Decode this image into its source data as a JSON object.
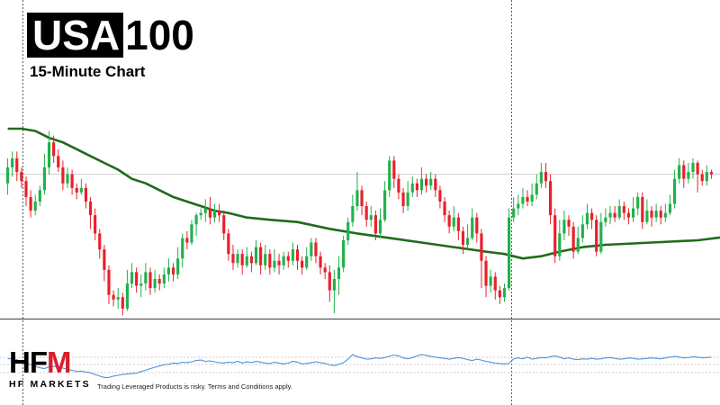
{
  "header": {
    "title_boxed": "USA",
    "title_rest": "100",
    "subtitle": "15-Minute Chart"
  },
  "footer": {
    "logo_text": "HF",
    "logo_accent": "M",
    "logo_sub": "HF MARKETS",
    "disclaimer": "Trading Leveraged Products is risky. Terms and Conditions apply."
  },
  "colors": {
    "up": "#22b14c",
    "down": "#e8202a",
    "ma": "#1f6b1a",
    "oscillator": "#4f93d6",
    "brand_red": "#d81e2a"
  },
  "chart_data": {
    "type": "candlestick",
    "title": "USA100",
    "subtitle": "15-Minute Chart",
    "ylim": [
      0,
      100
    ],
    "reference_level": 63,
    "candles": [
      {
        "o": 59,
        "c": 66,
        "h": 70,
        "l": 54
      },
      {
        "o": 66,
        "c": 70,
        "h": 73,
        "l": 62
      },
      {
        "o": 70,
        "c": 64,
        "h": 73,
        "l": 60
      },
      {
        "o": 64,
        "c": 60,
        "h": 66,
        "l": 57
      },
      {
        "o": 60,
        "c": 53,
        "h": 62,
        "l": 49
      },
      {
        "o": 53,
        "c": 47,
        "h": 56,
        "l": 44
      },
      {
        "o": 47,
        "c": 51,
        "h": 54,
        "l": 45
      },
      {
        "o": 51,
        "c": 56,
        "h": 58,
        "l": 49
      },
      {
        "o": 56,
        "c": 66,
        "h": 72,
        "l": 54
      },
      {
        "o": 66,
        "c": 77,
        "h": 82,
        "l": 63
      },
      {
        "o": 77,
        "c": 71,
        "h": 80,
        "l": 68
      },
      {
        "o": 71,
        "c": 66,
        "h": 74,
        "l": 64
      },
      {
        "o": 66,
        "c": 59,
        "h": 69,
        "l": 56
      },
      {
        "o": 59,
        "c": 63,
        "h": 66,
        "l": 57
      },
      {
        "o": 63,
        "c": 57,
        "h": 65,
        "l": 54
      },
      {
        "o": 57,
        "c": 55,
        "h": 59,
        "l": 52
      },
      {
        "o": 55,
        "c": 57,
        "h": 61,
        "l": 54
      },
      {
        "o": 57,
        "c": 51,
        "h": 59,
        "l": 48
      },
      {
        "o": 51,
        "c": 45,
        "h": 53,
        "l": 39
      },
      {
        "o": 45,
        "c": 37,
        "h": 48,
        "l": 34
      },
      {
        "o": 37,
        "c": 30,
        "h": 39,
        "l": 26
      },
      {
        "o": 30,
        "c": 21,
        "h": 32,
        "l": 16
      },
      {
        "o": 21,
        "c": 10,
        "h": 23,
        "l": 6
      },
      {
        "o": 10,
        "c": 8,
        "h": 12,
        "l": 5
      },
      {
        "o": 8,
        "c": 9,
        "h": 13,
        "l": 4
      },
      {
        "o": 9,
        "c": 4,
        "h": 11,
        "l": 1
      },
      {
        "o": 4,
        "c": 15,
        "h": 21,
        "l": 3
      },
      {
        "o": 15,
        "c": 20,
        "h": 24,
        "l": 13
      },
      {
        "o": 20,
        "c": 14,
        "h": 22,
        "l": 11
      },
      {
        "o": 14,
        "c": 15,
        "h": 19,
        "l": 9
      },
      {
        "o": 15,
        "c": 20,
        "h": 24,
        "l": 12
      },
      {
        "o": 20,
        "c": 13,
        "h": 22,
        "l": 10
      },
      {
        "o": 13,
        "c": 17,
        "h": 21,
        "l": 11
      },
      {
        "o": 17,
        "c": 15,
        "h": 19,
        "l": 12
      },
      {
        "o": 15,
        "c": 19,
        "h": 22,
        "l": 13
      },
      {
        "o": 19,
        "c": 22,
        "h": 26,
        "l": 16
      },
      {
        "o": 22,
        "c": 19,
        "h": 24,
        "l": 16
      },
      {
        "o": 19,
        "c": 26,
        "h": 31,
        "l": 17
      },
      {
        "o": 26,
        "c": 35,
        "h": 37,
        "l": 22
      },
      {
        "o": 35,
        "c": 33,
        "h": 38,
        "l": 30
      },
      {
        "o": 33,
        "c": 41,
        "h": 43,
        "l": 32
      },
      {
        "o": 41,
        "c": 45,
        "h": 46,
        "l": 36
      },
      {
        "o": 45,
        "c": 46,
        "h": 48,
        "l": 43
      },
      {
        "o": 46,
        "c": 48,
        "h": 52,
        "l": 42
      },
      {
        "o": 48,
        "c": 44,
        "h": 53,
        "l": 41
      },
      {
        "o": 44,
        "c": 47,
        "h": 50,
        "l": 42
      },
      {
        "o": 47,
        "c": 45,
        "h": 50,
        "l": 42
      },
      {
        "o": 45,
        "c": 37,
        "h": 47,
        "l": 34
      },
      {
        "o": 37,
        "c": 28,
        "h": 39,
        "l": 25
      },
      {
        "o": 28,
        "c": 24,
        "h": 32,
        "l": 21
      },
      {
        "o": 24,
        "c": 28,
        "h": 30,
        "l": 22
      },
      {
        "o": 28,
        "c": 23,
        "h": 30,
        "l": 19
      },
      {
        "o": 23,
        "c": 27,
        "h": 31,
        "l": 22
      },
      {
        "o": 27,
        "c": 24,
        "h": 29,
        "l": 20
      },
      {
        "o": 24,
        "c": 31,
        "h": 34,
        "l": 23
      },
      {
        "o": 31,
        "c": 23,
        "h": 33,
        "l": 19
      },
      {
        "o": 23,
        "c": 28,
        "h": 32,
        "l": 21
      },
      {
        "o": 28,
        "c": 22,
        "h": 30,
        "l": 19
      },
      {
        "o": 22,
        "c": 25,
        "h": 30,
        "l": 20
      },
      {
        "o": 25,
        "c": 23,
        "h": 28,
        "l": 19
      },
      {
        "o": 23,
        "c": 27,
        "h": 29,
        "l": 21
      },
      {
        "o": 27,
        "c": 25,
        "h": 29,
        "l": 22
      },
      {
        "o": 25,
        "c": 30,
        "h": 33,
        "l": 23
      },
      {
        "o": 30,
        "c": 25,
        "h": 32,
        "l": 21
      },
      {
        "o": 25,
        "c": 22,
        "h": 27,
        "l": 19
      },
      {
        "o": 22,
        "c": 27,
        "h": 31,
        "l": 21
      },
      {
        "o": 27,
        "c": 33,
        "h": 35,
        "l": 25
      },
      {
        "o": 33,
        "c": 27,
        "h": 35,
        "l": 24
      },
      {
        "o": 27,
        "c": 22,
        "h": 29,
        "l": 19
      },
      {
        "o": 22,
        "c": 20,
        "h": 24,
        "l": 17
      },
      {
        "o": 20,
        "c": 12,
        "h": 23,
        "l": 7
      },
      {
        "o": 12,
        "c": 17,
        "h": 21,
        "l": 2
      },
      {
        "o": 17,
        "c": 22,
        "h": 27,
        "l": 10
      },
      {
        "o": 22,
        "c": 34,
        "h": 36,
        "l": 20
      },
      {
        "o": 34,
        "c": 42,
        "h": 44,
        "l": 32
      },
      {
        "o": 42,
        "c": 49,
        "h": 54,
        "l": 40
      },
      {
        "o": 49,
        "c": 56,
        "h": 64,
        "l": 47
      },
      {
        "o": 56,
        "c": 49,
        "h": 58,
        "l": 45
      },
      {
        "o": 49,
        "c": 43,
        "h": 51,
        "l": 40
      },
      {
        "o": 43,
        "c": 45,
        "h": 49,
        "l": 40
      },
      {
        "o": 45,
        "c": 37,
        "h": 47,
        "l": 34
      },
      {
        "o": 37,
        "c": 43,
        "h": 48,
        "l": 35
      },
      {
        "o": 43,
        "c": 56,
        "h": 60,
        "l": 42
      },
      {
        "o": 56,
        "c": 69,
        "h": 71,
        "l": 53
      },
      {
        "o": 69,
        "c": 61,
        "h": 71,
        "l": 57
      },
      {
        "o": 61,
        "c": 55,
        "h": 63,
        "l": 52
      },
      {
        "o": 55,
        "c": 49,
        "h": 57,
        "l": 46
      },
      {
        "o": 49,
        "c": 55,
        "h": 60,
        "l": 47
      },
      {
        "o": 55,
        "c": 59,
        "h": 62,
        "l": 53
      },
      {
        "o": 59,
        "c": 56,
        "h": 61,
        "l": 53
      },
      {
        "o": 56,
        "c": 61,
        "h": 66,
        "l": 54
      },
      {
        "o": 61,
        "c": 58,
        "h": 63,
        "l": 55
      },
      {
        "o": 58,
        "c": 61,
        "h": 64,
        "l": 56
      },
      {
        "o": 61,
        "c": 56,
        "h": 63,
        "l": 53
      },
      {
        "o": 56,
        "c": 51,
        "h": 58,
        "l": 48
      },
      {
        "o": 51,
        "c": 45,
        "h": 53,
        "l": 42
      },
      {
        "o": 45,
        "c": 40,
        "h": 47,
        "l": 37
      },
      {
        "o": 40,
        "c": 44,
        "h": 49,
        "l": 38
      },
      {
        "o": 44,
        "c": 38,
        "h": 46,
        "l": 34
      },
      {
        "o": 38,
        "c": 32,
        "h": 40,
        "l": 28
      },
      {
        "o": 32,
        "c": 35,
        "h": 41,
        "l": 30
      },
      {
        "o": 35,
        "c": 44,
        "h": 48,
        "l": 34
      },
      {
        "o": 44,
        "c": 37,
        "h": 46,
        "l": 33
      },
      {
        "o": 37,
        "c": 25,
        "h": 39,
        "l": 13
      },
      {
        "o": 25,
        "c": 14,
        "h": 27,
        "l": 9
      },
      {
        "o": 14,
        "c": 18,
        "h": 21,
        "l": 11
      },
      {
        "o": 18,
        "c": 12,
        "h": 20,
        "l": 8
      },
      {
        "o": 12,
        "c": 9,
        "h": 14,
        "l": 6
      },
      {
        "o": 9,
        "c": 13,
        "h": 15,
        "l": 7
      },
      {
        "o": 13,
        "c": 44,
        "h": 48,
        "l": 12
      },
      {
        "o": 44,
        "c": 48,
        "h": 53,
        "l": 42
      },
      {
        "o": 48,
        "c": 50,
        "h": 54,
        "l": 45
      },
      {
        "o": 50,
        "c": 53,
        "h": 57,
        "l": 48
      },
      {
        "o": 53,
        "c": 51,
        "h": 56,
        "l": 49
      },
      {
        "o": 51,
        "c": 54,
        "h": 59,
        "l": 49
      },
      {
        "o": 54,
        "c": 59,
        "h": 63,
        "l": 52
      },
      {
        "o": 59,
        "c": 64,
        "h": 68,
        "l": 57
      },
      {
        "o": 64,
        "c": 60,
        "h": 68,
        "l": 57
      },
      {
        "o": 60,
        "c": 45,
        "h": 63,
        "l": 41
      },
      {
        "o": 45,
        "c": 27,
        "h": 48,
        "l": 24
      },
      {
        "o": 27,
        "c": 37,
        "h": 43,
        "l": 25
      },
      {
        "o": 37,
        "c": 43,
        "h": 47,
        "l": 34
      },
      {
        "o": 43,
        "c": 40,
        "h": 45,
        "l": 36
      },
      {
        "o": 40,
        "c": 29,
        "h": 42,
        "l": 26
      },
      {
        "o": 29,
        "c": 35,
        "h": 40,
        "l": 28
      },
      {
        "o": 35,
        "c": 41,
        "h": 45,
        "l": 33
      },
      {
        "o": 41,
        "c": 46,
        "h": 50,
        "l": 39
      },
      {
        "o": 46,
        "c": 43,
        "h": 48,
        "l": 39
      },
      {
        "o": 43,
        "c": 29,
        "h": 45,
        "l": 27
      },
      {
        "o": 29,
        "c": 42,
        "h": 46,
        "l": 28
      },
      {
        "o": 42,
        "c": 44,
        "h": 48,
        "l": 40
      },
      {
        "o": 44,
        "c": 46,
        "h": 49,
        "l": 41
      },
      {
        "o": 46,
        "c": 44,
        "h": 49,
        "l": 42
      },
      {
        "o": 44,
        "c": 49,
        "h": 52,
        "l": 43
      },
      {
        "o": 49,
        "c": 46,
        "h": 51,
        "l": 43
      },
      {
        "o": 46,
        "c": 44,
        "h": 48,
        "l": 41
      },
      {
        "o": 44,
        "c": 48,
        "h": 53,
        "l": 42
      },
      {
        "o": 48,
        "c": 53,
        "h": 55,
        "l": 45
      },
      {
        "o": 53,
        "c": 42,
        "h": 55,
        "l": 39
      },
      {
        "o": 42,
        "c": 47,
        "h": 52,
        "l": 41
      },
      {
        "o": 47,
        "c": 44,
        "h": 49,
        "l": 40
      },
      {
        "o": 44,
        "c": 47,
        "h": 50,
        "l": 42
      },
      {
        "o": 47,
        "c": 44,
        "h": 49,
        "l": 41
      },
      {
        "o": 44,
        "c": 46,
        "h": 50,
        "l": 42
      },
      {
        "o": 46,
        "c": 50,
        "h": 54,
        "l": 45
      },
      {
        "o": 50,
        "c": 61,
        "h": 65,
        "l": 48
      },
      {
        "o": 61,
        "c": 67,
        "h": 70,
        "l": 59
      },
      {
        "o": 67,
        "c": 61,
        "h": 69,
        "l": 57
      },
      {
        "o": 61,
        "c": 64,
        "h": 68,
        "l": 59
      },
      {
        "o": 64,
        "c": 68,
        "h": 70,
        "l": 61
      },
      {
        "o": 68,
        "c": 63,
        "h": 69,
        "l": 55
      },
      {
        "o": 63,
        "c": 60,
        "h": 65,
        "l": 58
      },
      {
        "o": 60,
        "c": 64,
        "h": 67,
        "l": 58
      },
      {
        "o": 64,
        "c": 63,
        "h": 65,
        "l": 61
      }
    ],
    "moving_average": [
      [
        0,
        83
      ],
      [
        3,
        83
      ],
      [
        6,
        82
      ],
      [
        9,
        79
      ],
      [
        12,
        77
      ],
      [
        15,
        74
      ],
      [
        18,
        71
      ],
      [
        21,
        68
      ],
      [
        24,
        65
      ],
      [
        27,
        61
      ],
      [
        30,
        59
      ],
      [
        33,
        56
      ],
      [
        36,
        53
      ],
      [
        39,
        51
      ],
      [
        42,
        49
      ],
      [
        45,
        47
      ],
      [
        48,
        46
      ],
      [
        52,
        44
      ],
      [
        57,
        43
      ],
      [
        63,
        42
      ],
      [
        70,
        39
      ],
      [
        76,
        37
      ],
      [
        83,
        35
      ],
      [
        90,
        33
      ],
      [
        97,
        31
      ],
      [
        104,
        29
      ],
      [
        108,
        28
      ],
      [
        112,
        26
      ],
      [
        116,
        27
      ],
      [
        120,
        29
      ],
      [
        125,
        31
      ],
      [
        130,
        32
      ],
      [
        140,
        33
      ],
      [
        150,
        34
      ],
      [
        158,
        36
      ],
      [
        163,
        38
      ],
      [
        166,
        39
      ]
    ],
    "oscillator": [
      56,
      57,
      54,
      48,
      47,
      42,
      38,
      35,
      33,
      37,
      38,
      36,
      34,
      31,
      29,
      26,
      27,
      25,
      23,
      19,
      15,
      12,
      12,
      15,
      17,
      19,
      20,
      21,
      22,
      26,
      29,
      33,
      36,
      39,
      42,
      43,
      46,
      45,
      48,
      47,
      49,
      52,
      53,
      50,
      51,
      49,
      47,
      46,
      48,
      47,
      50,
      46,
      49,
      47,
      50,
      48,
      46,
      45,
      48,
      46,
      44,
      46,
      50,
      48,
      44,
      45,
      47,
      49,
      47,
      45,
      42,
      40,
      43,
      47,
      55,
      66,
      61,
      58,
      55,
      56,
      58,
      57,
      59,
      62,
      65,
      63,
      58,
      56,
      59,
      63,
      66,
      64,
      62,
      60,
      58,
      57,
      55,
      57,
      59,
      57,
      54,
      52,
      55,
      53,
      50,
      48,
      46,
      45,
      44,
      45,
      56,
      58,
      56,
      60,
      55,
      57,
      59,
      58,
      61,
      63,
      60,
      56,
      58,
      55,
      54,
      56,
      55,
      57,
      55,
      56,
      58,
      59,
      57,
      55,
      56,
      58,
      57,
      55,
      56,
      57,
      58,
      57,
      56,
      58,
      60,
      62,
      60,
      58,
      59,
      61,
      60,
      58,
      59,
      60
    ]
  }
}
